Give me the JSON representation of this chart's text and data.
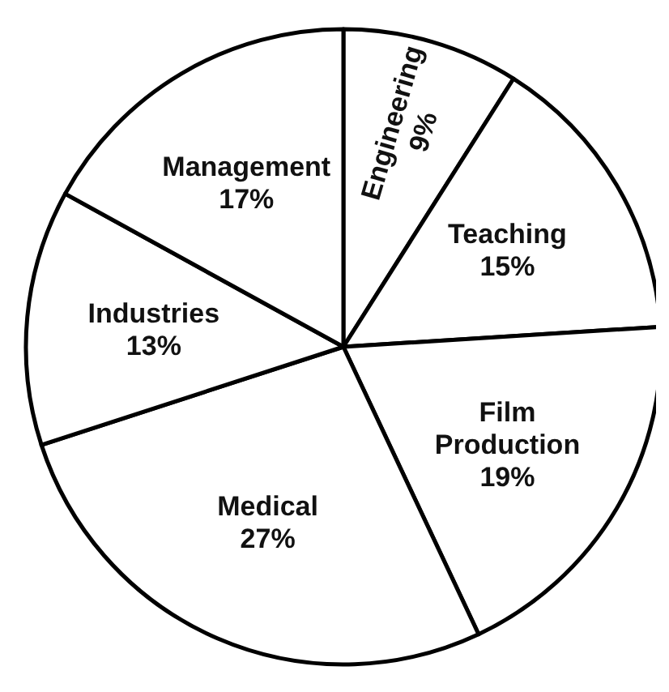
{
  "chart_data": {
    "type": "pie",
    "categories": [
      "Engineering",
      "Teaching",
      "Film Production",
      "Medical",
      "Industries",
      "Management"
    ],
    "values": [
      9,
      15,
      19,
      27,
      13,
      17
    ],
    "colors": [
      "#ffffff",
      "#ffffff",
      "#ffffff",
      "#ffffff",
      "#ffffff",
      "#ffffff"
    ],
    "value_labels": [
      "9%",
      "15%",
      "19%",
      "27%",
      "13%",
      "17%"
    ]
  }
}
